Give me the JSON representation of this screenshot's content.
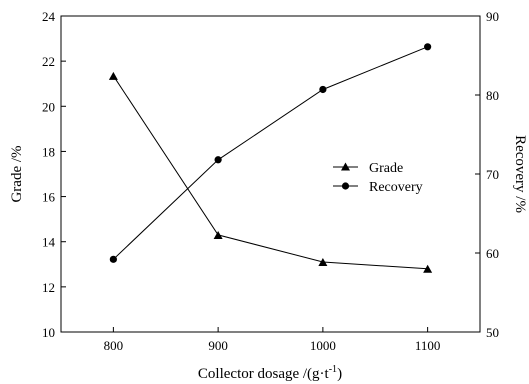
{
  "chart_data": {
    "type": "line",
    "x": [
      800,
      900,
      1000,
      1100
    ],
    "xticks": [
      "800",
      "900",
      "1000",
      "1100"
    ],
    "xlim": [
      750,
      1150
    ],
    "xlabel": "Collector dosage /(g·t",
    "xlabel_sup": "-1",
    "xlabel_close": ")",
    "ylabel_left": "Grade /%",
    "ylabel_right": "Recovery /%",
    "ylim_left": [
      10,
      24
    ],
    "yticks_left": [
      "10",
      "12",
      "14",
      "16",
      "18",
      "20",
      "22",
      "24"
    ],
    "ylim_right": [
      50,
      90
    ],
    "yticks_right": [
      "50",
      "60",
      "70",
      "80",
      "90"
    ],
    "grid": false,
    "legend_position": "center-right",
    "series": [
      {
        "name": "Grade",
        "axis": "left",
        "marker": "triangle",
        "values": [
          21.35,
          14.3,
          13.1,
          12.8
        ]
      },
      {
        "name": "Recovery",
        "axis": "right",
        "marker": "circle",
        "values": [
          59.2,
          71.8,
          80.7,
          86.1
        ]
      }
    ]
  }
}
